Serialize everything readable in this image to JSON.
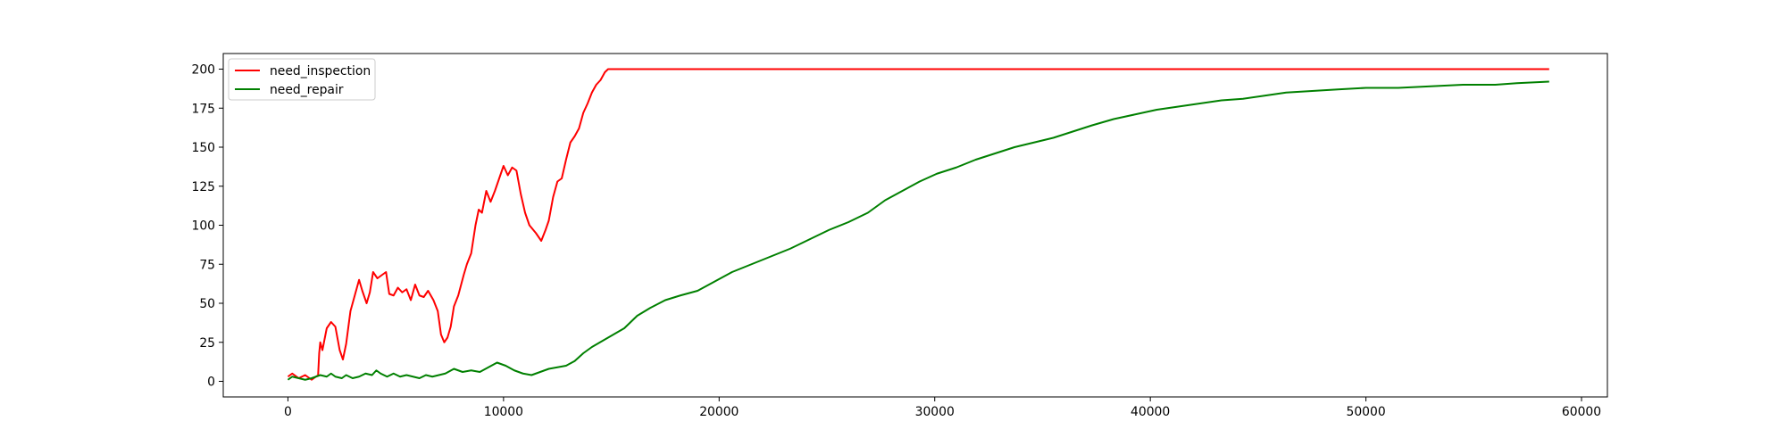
{
  "chart_data": {
    "type": "line",
    "title": "",
    "xlabel": "",
    "ylabel": "",
    "xlim": [
      -3000,
      61200
    ],
    "ylim": [
      -10,
      210
    ],
    "x_ticks": [
      0,
      10000,
      20000,
      30000,
      40000,
      50000,
      60000
    ],
    "x_tick_labels": [
      "0",
      "10000",
      "20000",
      "30000",
      "40000",
      "50000",
      "60000"
    ],
    "y_ticks": [
      0,
      25,
      50,
      75,
      100,
      125,
      150,
      175,
      200
    ],
    "y_tick_labels": [
      "0",
      "25",
      "50",
      "75",
      "100",
      "125",
      "150",
      "175",
      "200"
    ],
    "grid": false,
    "legend_position": "upper-left",
    "series": [
      {
        "name": "need_inspection",
        "color": "#ff0000",
        "points": [
          [
            0,
            3
          ],
          [
            200,
            5
          ],
          [
            500,
            2
          ],
          [
            800,
            4
          ],
          [
            1100,
            1
          ],
          [
            1300,
            3
          ],
          [
            1400,
            4
          ],
          [
            1450,
            18
          ],
          [
            1500,
            25
          ],
          [
            1600,
            20
          ],
          [
            1700,
            27
          ],
          [
            1800,
            34
          ],
          [
            2000,
            38
          ],
          [
            2200,
            35
          ],
          [
            2400,
            20
          ],
          [
            2550,
            14
          ],
          [
            2700,
            24
          ],
          [
            2900,
            45
          ],
          [
            3100,
            55
          ],
          [
            3300,
            65
          ],
          [
            3450,
            58
          ],
          [
            3650,
            50
          ],
          [
            3800,
            57
          ],
          [
            3950,
            70
          ],
          [
            4150,
            66
          ],
          [
            4350,
            68
          ],
          [
            4550,
            70
          ],
          [
            4700,
            56
          ],
          [
            4900,
            55
          ],
          [
            5100,
            60
          ],
          [
            5300,
            57
          ],
          [
            5500,
            59
          ],
          [
            5700,
            52
          ],
          [
            5900,
            62
          ],
          [
            6100,
            55
          ],
          [
            6300,
            54
          ],
          [
            6500,
            58
          ],
          [
            6750,
            52
          ],
          [
            6950,
            45
          ],
          [
            7100,
            30
          ],
          [
            7250,
            25
          ],
          [
            7400,
            28
          ],
          [
            7550,
            35
          ],
          [
            7700,
            48
          ],
          [
            7900,
            55
          ],
          [
            8150,
            68
          ],
          [
            8300,
            75
          ],
          [
            8500,
            82
          ],
          [
            8700,
            100
          ],
          [
            8850,
            110
          ],
          [
            9000,
            108
          ],
          [
            9200,
            122
          ],
          [
            9400,
            115
          ],
          [
            9600,
            122
          ],
          [
            9800,
            130
          ],
          [
            10000,
            138
          ],
          [
            10200,
            132
          ],
          [
            10400,
            137
          ],
          [
            10600,
            135
          ],
          [
            10800,
            120
          ],
          [
            11000,
            108
          ],
          [
            11200,
            100
          ],
          [
            11500,
            95
          ],
          [
            11750,
            90
          ],
          [
            11950,
            97
          ],
          [
            12100,
            103
          ],
          [
            12300,
            118
          ],
          [
            12500,
            128
          ],
          [
            12700,
            130
          ],
          [
            12900,
            142
          ],
          [
            13100,
            153
          ],
          [
            13300,
            157
          ],
          [
            13500,
            162
          ],
          [
            13700,
            172
          ],
          [
            13900,
            178
          ],
          [
            14100,
            185
          ],
          [
            14300,
            190
          ],
          [
            14500,
            193
          ],
          [
            14700,
            198
          ],
          [
            14850,
            200
          ],
          [
            58500,
            200
          ]
        ]
      },
      {
        "name": "need_repair",
        "color": "#008000",
        "points": [
          [
            0,
            1
          ],
          [
            200,
            3
          ],
          [
            500,
            2
          ],
          [
            800,
            1
          ],
          [
            1100,
            2
          ],
          [
            1300,
            3
          ],
          [
            1500,
            4
          ],
          [
            1800,
            3
          ],
          [
            2000,
            5
          ],
          [
            2200,
            3
          ],
          [
            2500,
            2
          ],
          [
            2700,
            4
          ],
          [
            3000,
            2
          ],
          [
            3300,
            3
          ],
          [
            3600,
            5
          ],
          [
            3900,
            4
          ],
          [
            4100,
            7
          ],
          [
            4300,
            5
          ],
          [
            4600,
            3
          ],
          [
            4900,
            5
          ],
          [
            5200,
            3
          ],
          [
            5500,
            4
          ],
          [
            5800,
            3
          ],
          [
            6100,
            2
          ],
          [
            6400,
            4
          ],
          [
            6700,
            3
          ],
          [
            7000,
            4
          ],
          [
            7300,
            5
          ],
          [
            7700,
            8
          ],
          [
            8100,
            6
          ],
          [
            8500,
            7
          ],
          [
            8900,
            6
          ],
          [
            9300,
            9
          ],
          [
            9700,
            12
          ],
          [
            10100,
            10
          ],
          [
            10500,
            7
          ],
          [
            10900,
            5
          ],
          [
            11300,
            4
          ],
          [
            11700,
            6
          ],
          [
            12100,
            8
          ],
          [
            12500,
            9
          ],
          [
            12900,
            10
          ],
          [
            13300,
            13
          ],
          [
            13700,
            18
          ],
          [
            14100,
            22
          ],
          [
            14600,
            26
          ],
          [
            15100,
            30
          ],
          [
            15600,
            34
          ],
          [
            16200,
            42
          ],
          [
            16800,
            47
          ],
          [
            17500,
            52
          ],
          [
            18200,
            55
          ],
          [
            19000,
            58
          ],
          [
            19800,
            64
          ],
          [
            20600,
            70
          ],
          [
            21500,
            75
          ],
          [
            22400,
            80
          ],
          [
            23300,
            85
          ],
          [
            24200,
            91
          ],
          [
            25100,
            97
          ],
          [
            26000,
            102
          ],
          [
            26900,
            108
          ],
          [
            27700,
            116
          ],
          [
            28500,
            122
          ],
          [
            29300,
            128
          ],
          [
            30100,
            133
          ],
          [
            31000,
            137
          ],
          [
            31900,
            142
          ],
          [
            32800,
            146
          ],
          [
            33700,
            150
          ],
          [
            34600,
            153
          ],
          [
            35500,
            156
          ],
          [
            36400,
            160
          ],
          [
            37300,
            164
          ],
          [
            38300,
            168
          ],
          [
            39300,
            171
          ],
          [
            40300,
            174
          ],
          [
            41300,
            176
          ],
          [
            42300,
            178
          ],
          [
            43300,
            180
          ],
          [
            44300,
            181
          ],
          [
            45300,
            183
          ],
          [
            46300,
            185
          ],
          [
            47500,
            186
          ],
          [
            48700,
            187
          ],
          [
            50000,
            188
          ],
          [
            51500,
            188
          ],
          [
            53000,
            189
          ],
          [
            54500,
            190
          ],
          [
            56000,
            190
          ],
          [
            57000,
            191
          ],
          [
            58500,
            192
          ]
        ]
      }
    ]
  }
}
